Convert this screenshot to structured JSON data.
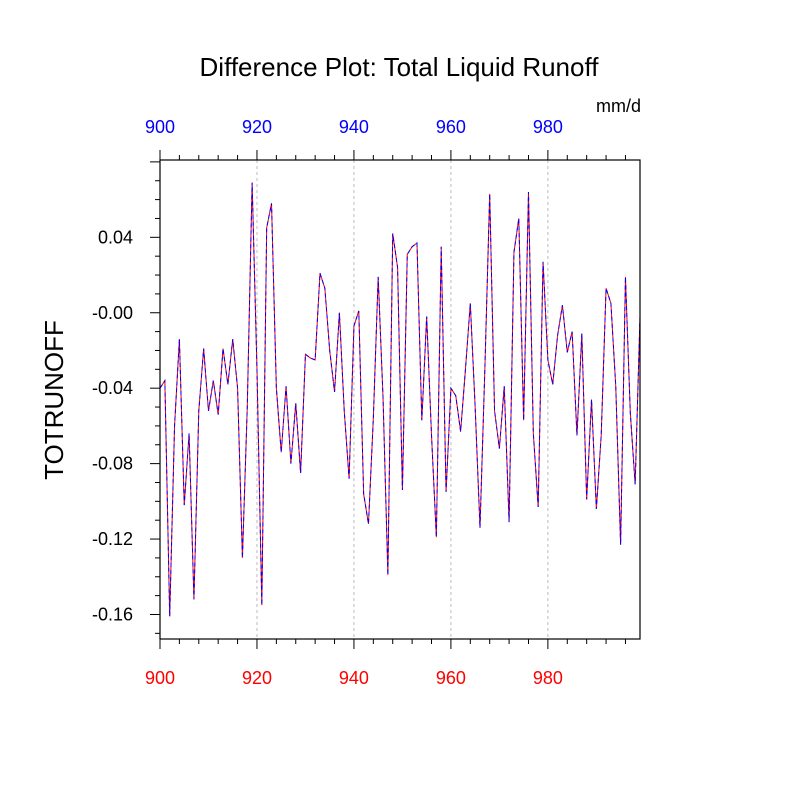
{
  "colors": {
    "top_axis_labels": "#0000ff",
    "bottom_axis_labels": "#ff0000",
    "series_a": "#ff0000",
    "series_b": "#0000ff",
    "frame": "#000000",
    "gridline": "#bbbbbb"
  },
  "chart_data": {
    "type": "line",
    "title": "Difference Plot: Total Liquid Runoff",
    "units": "mm/d",
    "ylabel": "TOTRUNOFF",
    "xlabel": "",
    "xlim": [
      900,
      999
    ],
    "ylim": [
      -0.173,
      0.081
    ],
    "x_ticks": [
      "900",
      "920",
      "940",
      "960",
      "980"
    ],
    "y_ticks": [
      "0.04",
      "-0.00",
      "-0.04",
      "-0.08",
      "-0.12",
      "-0.16"
    ],
    "grid": "vertical dashed at labeled x ticks",
    "x": [
      900,
      901,
      902,
      903,
      904,
      905,
      906,
      907,
      908,
      909,
      910,
      911,
      912,
      913,
      914,
      915,
      916,
      917,
      918,
      919,
      920,
      921,
      922,
      923,
      924,
      925,
      926,
      927,
      928,
      929,
      930,
      931,
      932,
      933,
      934,
      935,
      936,
      937,
      938,
      939,
      940,
      941,
      942,
      943,
      944,
      945,
      946,
      947,
      948,
      949,
      950,
      951,
      952,
      953,
      954,
      955,
      956,
      957,
      958,
      959,
      960,
      961,
      962,
      963,
      964,
      965,
      966,
      967,
      968,
      969,
      970,
      971,
      972,
      973,
      974,
      975,
      976,
      977,
      978,
      979,
      980,
      981,
      982,
      983,
      984,
      985,
      986,
      987,
      988,
      989,
      990,
      991,
      992,
      993,
      994,
      995,
      996,
      997,
      998,
      999
    ],
    "series": [
      {
        "values": [
          -0.04,
          -0.036,
          -0.161,
          -0.06,
          -0.014,
          -0.102,
          -0.064,
          -0.152,
          -0.052,
          -0.019,
          -0.052,
          -0.036,
          -0.054,
          -0.019,
          -0.038,
          -0.014,
          -0.04,
          -0.13,
          -0.05,
          0.069,
          -0.03,
          -0.155,
          0.045,
          0.058,
          -0.04,
          -0.074,
          -0.039,
          -0.08,
          -0.048,
          -0.085,
          -0.022,
          -0.024,
          -0.025,
          0.021,
          0.013,
          -0.02,
          -0.042,
          0.0,
          -0.052,
          -0.088,
          -0.007,
          0.001,
          -0.096,
          -0.112,
          -0.056,
          0.019,
          -0.045,
          -0.139,
          0.042,
          0.024,
          -0.094,
          0.031,
          0.035,
          0.037,
          -0.057,
          -0.002,
          -0.065,
          -0.119,
          0.035,
          -0.095,
          -0.04,
          -0.044,
          -0.063,
          -0.03,
          0.005,
          -0.05,
          -0.114,
          -0.03,
          0.063,
          -0.052,
          -0.072,
          -0.039,
          -0.111,
          0.032,
          0.05,
          -0.057,
          0.064,
          -0.064,
          -0.103,
          0.027,
          -0.025,
          -0.038,
          -0.012,
          0.004,
          -0.021,
          -0.01,
          -0.065,
          -0.011,
          -0.099,
          -0.046,
          -0.104,
          -0.065,
          0.013,
          0.005,
          -0.039,
          -0.123,
          0.019,
          -0.053,
          -0.091,
          -0.002
        ]
      },
      {
        "values": [
          -0.04,
          -0.036,
          -0.161,
          -0.06,
          -0.014,
          -0.102,
          -0.064,
          -0.152,
          -0.052,
          -0.019,
          -0.052,
          -0.036,
          -0.054,
          -0.019,
          -0.038,
          -0.014,
          -0.04,
          -0.13,
          -0.05,
          0.069,
          -0.03,
          -0.155,
          0.045,
          0.058,
          -0.04,
          -0.074,
          -0.039,
          -0.08,
          -0.048,
          -0.085,
          -0.022,
          -0.024,
          -0.025,
          0.021,
          0.013,
          -0.02,
          -0.042,
          0.0,
          -0.052,
          -0.088,
          -0.007,
          0.001,
          -0.096,
          -0.112,
          -0.056,
          0.019,
          -0.045,
          -0.139,
          0.042,
          0.024,
          -0.094,
          0.031,
          0.035,
          0.037,
          -0.057,
          -0.002,
          -0.065,
          -0.119,
          0.035,
          -0.095,
          -0.04,
          -0.044,
          -0.063,
          -0.03,
          0.005,
          -0.05,
          -0.114,
          -0.03,
          0.063,
          -0.052,
          -0.072,
          -0.039,
          -0.111,
          0.032,
          0.05,
          -0.057,
          0.064,
          -0.064,
          -0.103,
          0.027,
          -0.025,
          -0.038,
          -0.012,
          0.004,
          -0.021,
          -0.01,
          -0.065,
          -0.011,
          -0.099,
          -0.046,
          -0.104,
          -0.065,
          0.013,
          0.005,
          -0.039,
          -0.123,
          0.019,
          -0.053,
          -0.091,
          -0.002
        ]
      }
    ]
  }
}
